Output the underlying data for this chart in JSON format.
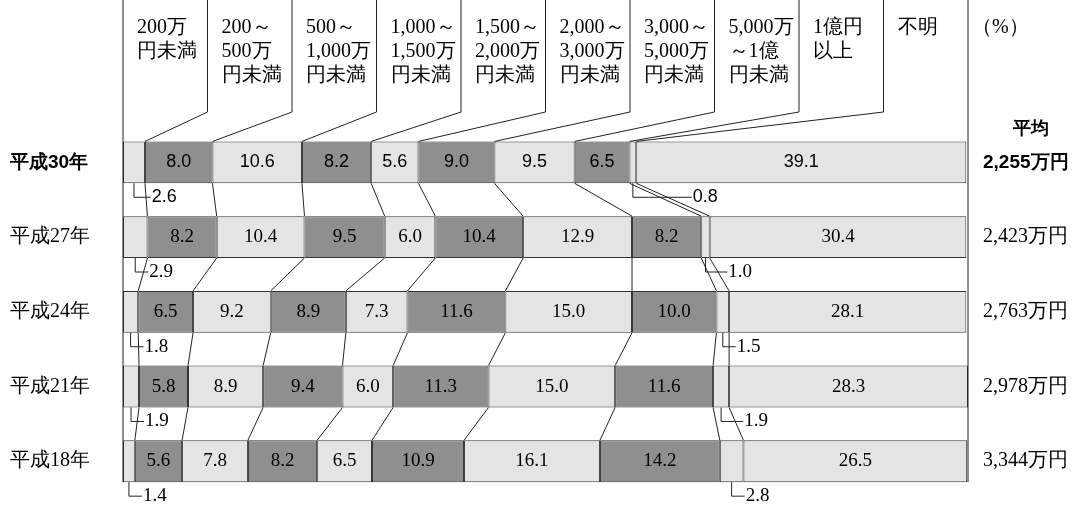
{
  "chart_data": {
    "type": "bar",
    "orientation": "horizontal",
    "stacked": true,
    "categories": [
      "平成30年",
      "平成27年",
      "平成24年",
      "平成21年",
      "平成18年"
    ],
    "series": [
      {
        "name": "200万円未満",
        "color": "#e4e4e4",
        "values": [
          2.6,
          2.9,
          1.8,
          1.9,
          1.4
        ],
        "value_labels": [
          "2.6",
          "2.9",
          "1.8",
          "1.9",
          "1.4"
        ]
      },
      {
        "name": "200～500万円未満",
        "color": "#8f8f8f",
        "values": [
          8.0,
          8.2,
          6.5,
          5.8,
          5.6
        ],
        "value_labels": [
          "8.0",
          "8.2",
          "6.5",
          "5.8",
          "5.6"
        ]
      },
      {
        "name": "500～1,000万円未満",
        "color": "#e4e4e4",
        "values": [
          10.6,
          10.4,
          9.2,
          8.9,
          7.8
        ],
        "value_labels": [
          "10.6",
          "10.4",
          "9.2",
          "8.9",
          "7.8"
        ]
      },
      {
        "name": "1,000～1,500万円未満",
        "color": "#8f8f8f",
        "values": [
          8.2,
          9.5,
          8.9,
          9.4,
          8.2
        ],
        "value_labels": [
          "8.2",
          "9.5",
          "8.9",
          "9.4",
          "8.2"
        ]
      },
      {
        "name": "1,500～2,000万円未満",
        "color": "#e4e4e4",
        "values": [
          5.6,
          6.0,
          7.3,
          6.0,
          6.5
        ],
        "value_labels": [
          "5.6",
          "6.0",
          "7.3",
          "6.0",
          "6.5"
        ]
      },
      {
        "name": "2,000～3,000万円未満",
        "color": "#8f8f8f",
        "values": [
          9.0,
          10.4,
          11.6,
          11.3,
          10.9
        ],
        "value_labels": [
          "9.0",
          "10.4",
          "11.6",
          "11.3",
          "10.9"
        ]
      },
      {
        "name": "3,000～5,000万円未満",
        "color": "#e4e4e4",
        "values": [
          9.5,
          12.9,
          15.0,
          15.0,
          16.1
        ],
        "value_labels": [
          "9.5",
          "12.9",
          "15.0",
          "15.0",
          "16.1"
        ]
      },
      {
        "name": "5,000万～1億円未満",
        "color": "#8f8f8f",
        "values": [
          6.5,
          8.2,
          10.0,
          11.6,
          14.2
        ],
        "value_labels": [
          "6.5",
          "8.2",
          "10.0",
          "11.6",
          "14.2"
        ]
      },
      {
        "name": "1億円以上",
        "color": "#e4e4e4",
        "values": [
          0.8,
          1.0,
          1.5,
          1.9,
          2.8
        ],
        "value_labels": [
          "0.8",
          "1.0",
          "1.5",
          "1.9",
          "2.8"
        ]
      },
      {
        "name": "不明",
        "color": "#e4e4e4",
        "values": [
          39.1,
          30.4,
          28.1,
          28.3,
          26.5
        ],
        "value_labels": [
          "39.1",
          "30.4",
          "28.1",
          "28.3",
          "26.5"
        ]
      }
    ],
    "xlim": [
      0,
      100.1
    ],
    "xlabel": "（%）",
    "tick_labels": "y",
    "legend": "top",
    "annotations": [
      "平均",
      "2,255万円",
      "2,423万円",
      "2,763万円",
      "2,978万円",
      "3,344万円"
    ]
  }
}
